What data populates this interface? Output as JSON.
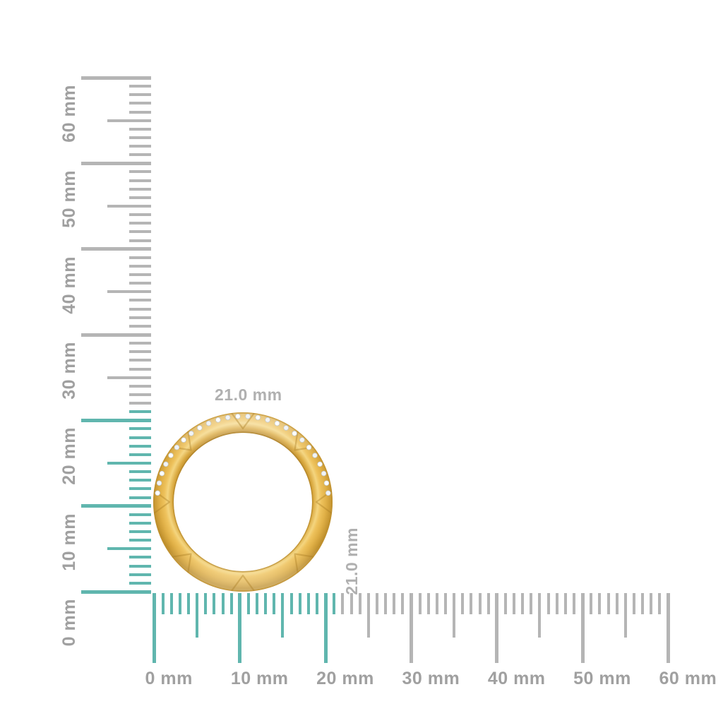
{
  "image": {
    "background": "#ffffff",
    "description": "Gold ring with diamond-set top edge shown to scale between a vertical and a horizontal millimeter ruler"
  },
  "ring": {
    "outer_diameter_mm": 21.0,
    "band_color": "#e2b14a",
    "band_highlight": "#f6d783",
    "band_shadow": "#b8882b",
    "diamond_color": "#f2f4f6",
    "diamond_count": 26
  },
  "dimension_labels": {
    "width": "21.0 mm",
    "height": "21.0 mm",
    "color": "#b0b0b0"
  },
  "rulers": {
    "unit": "mm",
    "min_mm": 0,
    "max_mm": 60,
    "tick_step_mm": 1,
    "medium_step_mm": 5,
    "major_step_mm": 10,
    "highlight_extent_mm": 21,
    "colors": {
      "highlight": "#60b6ae",
      "tick": "#b5b5b5",
      "label": "#a0a0a0"
    },
    "vertical_labels": [
      "0 mm",
      "10 mm",
      "20 mm",
      "30 mm",
      "40 mm",
      "50 mm",
      "60 mm"
    ],
    "horizontal_labels": [
      "0 mm",
      "10 mm",
      "20 mm",
      "30 mm",
      "40 mm",
      "50 mm",
      "60 mm"
    ]
  }
}
